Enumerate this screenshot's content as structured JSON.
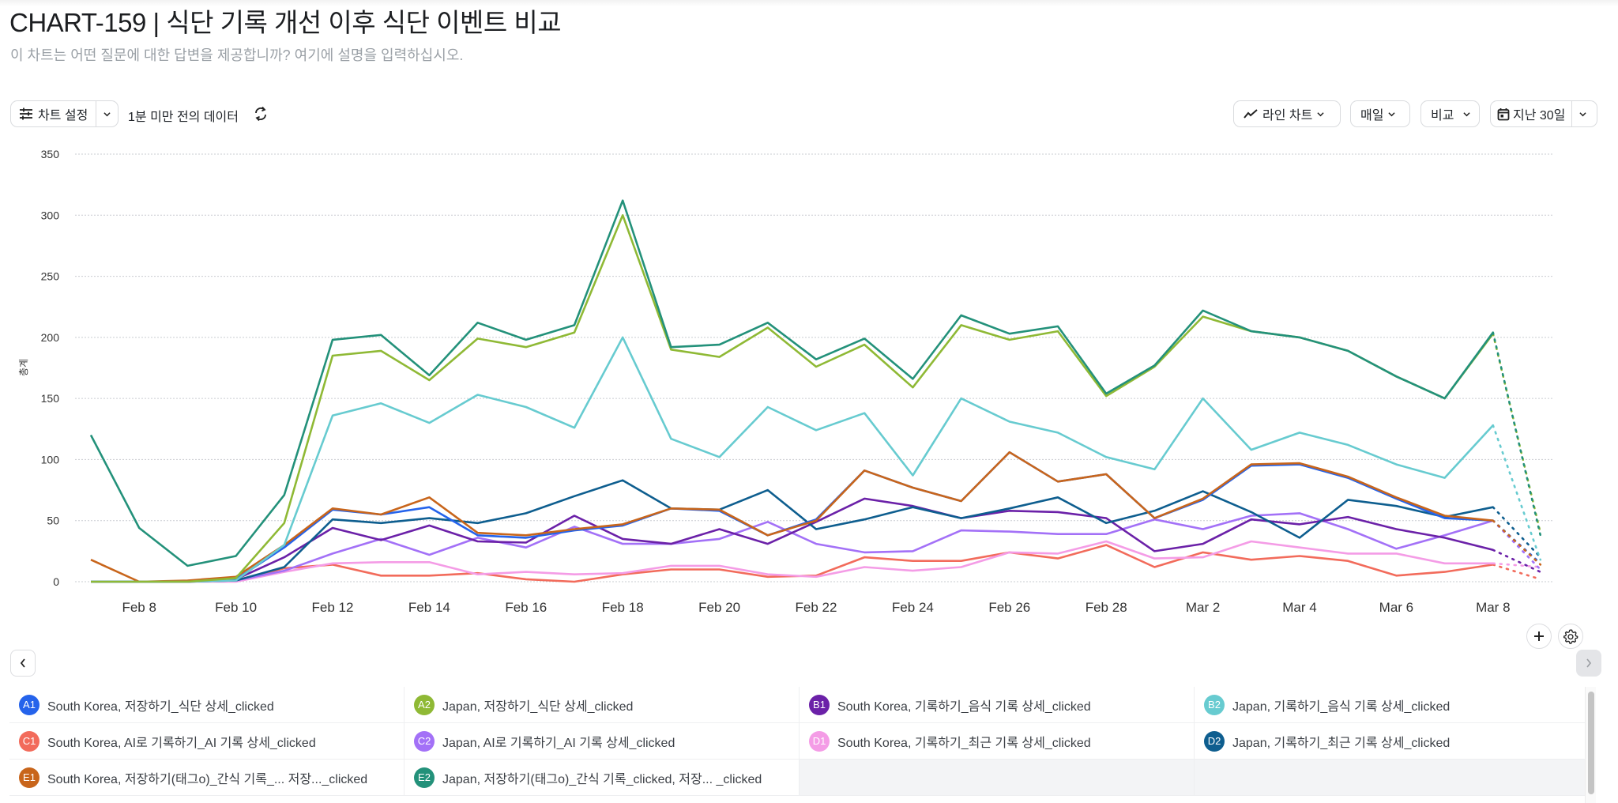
{
  "header": {
    "title": "CHART-159 | 식단 기록 개선 이후 식단 이벤트 비교",
    "description_placeholder": "이 차트는 어떤 질문에 대한 답변을 제공합니까? 여기에 설명을 입력하십시오."
  },
  "toolbar": {
    "chart_settings_label": "차트 설정",
    "data_freshness": "1분 미만 전의 데이터",
    "chart_type_label": "라인 차트",
    "interval_label": "매일",
    "compare_label": "비교",
    "date_range_label": "지난 30일"
  },
  "icons": {
    "settings": "sliders-icon",
    "refresh": "refresh-icon",
    "line_chart": "line-chart-icon",
    "calendar": "calendar-icon",
    "add": "plus-icon",
    "gear": "gear-icon",
    "prev": "chevron-left-icon",
    "next": "chevron-right-icon"
  },
  "chart_data": {
    "type": "line",
    "title": "CHART-159 | 식단 기록 개선 이후 식단 이벤트 비교",
    "xlabel": "",
    "ylabel": "총계",
    "ylim": [
      0,
      350
    ],
    "yticks": [
      0,
      50,
      100,
      150,
      200,
      250,
      300,
      350
    ],
    "grid": true,
    "legend_position": "bottom",
    "x": [
      "Feb 7",
      "Feb 8",
      "Feb 9",
      "Feb 10",
      "Feb 11",
      "Feb 12",
      "Feb 13",
      "Feb 14",
      "Feb 15",
      "Feb 16",
      "Feb 17",
      "Feb 18",
      "Feb 19",
      "Feb 20",
      "Feb 21",
      "Feb 22",
      "Feb 23",
      "Feb 24",
      "Feb 25",
      "Feb 26",
      "Feb 27",
      "Feb 28",
      "Mar 1",
      "Mar 2",
      "Mar 3",
      "Mar 4",
      "Mar 5",
      "Mar 6",
      "Mar 7",
      "Mar 8"
    ],
    "xtick_labels": [
      "Feb 8",
      "Feb 10",
      "Feb 12",
      "Feb 14",
      "Feb 16",
      "Feb 18",
      "Feb 20",
      "Feb 22",
      "Feb 24",
      "Feb 26",
      "Feb 28",
      "Mar 2",
      "Mar 4",
      "Mar 6",
      "Mar 8"
    ],
    "projection_label": "Mar 9 (incomplete, dotted)",
    "series": [
      {
        "id": "A1",
        "name": "South Korea, 저장하기_식단 상세_clicked",
        "color": "#2563eb",
        "values": [
          0,
          0,
          0,
          2,
          28,
          59,
          55,
          61,
          38,
          36,
          42,
          46,
          60,
          58,
          38,
          51,
          91,
          77,
          66,
          106,
          82,
          88,
          52,
          67,
          95,
          96,
          85,
          68,
          52,
          50
        ],
        "projection": 15
      },
      {
        "id": "A2",
        "name": "Japan, 저장하기_식단 상세_clicked",
        "color": "#8fb935",
        "values": [
          0,
          0,
          0,
          3,
          48,
          185,
          189,
          165,
          199,
          192,
          204,
          300,
          190,
          184,
          208,
          176,
          194,
          159,
          210,
          198,
          205,
          152,
          176,
          217,
          205,
          200,
          189,
          168,
          150,
          203
        ],
        "projection": 40
      },
      {
        "id": "B1",
        "name": "South Korea, 기록하기_음식 기록 상세_clicked",
        "color": "#6b21a8",
        "values": [
          0,
          0,
          0,
          2,
          20,
          44,
          34,
          46,
          33,
          32,
          54,
          35,
          31,
          43,
          31,
          49,
          68,
          62,
          52,
          58,
          57,
          52,
          25,
          31,
          51,
          47,
          53,
          43,
          36,
          26
        ],
        "projection": 8
      },
      {
        "id": "B2",
        "name": "Japan, 기록하기_음식 기록 상세_clicked",
        "color": "#67cbd0",
        "values": [
          0,
          0,
          0,
          1,
          30,
          136,
          146,
          130,
          153,
          143,
          126,
          200,
          117,
          102,
          143,
          124,
          138,
          87,
          150,
          131,
          122,
          102,
          92,
          150,
          108,
          122,
          112,
          96,
          85,
          128
        ],
        "projection": 18
      },
      {
        "id": "C1",
        "name": "South Korea, AI로 기록하기_AI 기록 상세_clicked",
        "color": "#f26b5b",
        "values": [
          0,
          0,
          0,
          1,
          11,
          14,
          5,
          5,
          7,
          2,
          0,
          6,
          10,
          10,
          4,
          5,
          20,
          17,
          17,
          24,
          19,
          30,
          12,
          24,
          18,
          21,
          17,
          5,
          8,
          14
        ],
        "projection": 2
      },
      {
        "id": "C2",
        "name": "Japan, AI로 기록하기_AI 기록 상세_clicked",
        "color": "#a371f7",
        "values": [
          0,
          0,
          0,
          1,
          9,
          23,
          35,
          22,
          36,
          28,
          45,
          31,
          31,
          35,
          49,
          31,
          24,
          25,
          42,
          41,
          39,
          39,
          51,
          43,
          54,
          56,
          43,
          27,
          38,
          50
        ],
        "projection": 10
      },
      {
        "id": "D1",
        "name": "South Korea, 기록하기_최근 기록 상세_clicked",
        "color": "#f49ce6",
        "values": [
          0,
          0,
          0,
          0,
          8,
          15,
          16,
          16,
          6,
          8,
          6,
          7,
          13,
          13,
          6,
          4,
          12,
          9,
          12,
          24,
          23,
          33,
          19,
          20,
          33,
          28,
          23,
          23,
          15,
          15
        ],
        "projection": 12
      },
      {
        "id": "D2",
        "name": "Japan, 기록하기_최근 기록 상세_clicked",
        "color": "#0e5e8f",
        "values": [
          0,
          0,
          0,
          1,
          12,
          51,
          48,
          52,
          48,
          56,
          70,
          83,
          60,
          59,
          75,
          43,
          51,
          61,
          52,
          60,
          69,
          48,
          58,
          74,
          57,
          36,
          67,
          62,
          53,
          61
        ],
        "projection": 20
      },
      {
        "id": "E1",
        "name": "South Korea, 저장하기(태그o)_간식 기록_... 저장..._clicked",
        "color": "#c8651b",
        "values": [
          18,
          0,
          1,
          4,
          30,
          60,
          55,
          69,
          40,
          38,
          43,
          47,
          60,
          59,
          38,
          50,
          91,
          77,
          66,
          106,
          82,
          88,
          52,
          68,
          96,
          97,
          86,
          69,
          54,
          50
        ],
        "projection": 14
      },
      {
        "id": "E2",
        "name": "Japan, 저장하기(태그o)_간식 기록_clicked, 저장... _clicked",
        "color": "#23917a",
        "values": [
          120,
          44,
          13,
          21,
          71,
          198,
          202,
          169,
          212,
          198,
          210,
          312,
          192,
          194,
          212,
          182,
          199,
          166,
          218,
          203,
          209,
          154,
          177,
          222,
          205,
          200,
          189,
          168,
          150,
          204
        ],
        "projection": 38
      }
    ]
  },
  "legend": {
    "rows": [
      [
        {
          "badge": "A1",
          "label": "South Korea, 저장하기_식단 상세_clicked",
          "color": "#2563eb"
        },
        {
          "badge": "A2",
          "label": "Japan, 저장하기_식단 상세_clicked",
          "color": "#8fb935"
        },
        {
          "badge": "B1",
          "label": "South Korea, 기록하기_음식 기록 상세_clicked",
          "color": "#6b21a8"
        },
        {
          "badge": "B2",
          "label": "Japan, 기록하기_음식 기록 상세_clicked",
          "color": "#67cbd0"
        }
      ],
      [
        {
          "badge": "C1",
          "label": "South Korea, AI로 기록하기_AI 기록 상세_clicked",
          "color": "#f26b5b"
        },
        {
          "badge": "C2",
          "label": "Japan, AI로 기록하기_AI 기록 상세_clicked",
          "color": "#a371f7"
        },
        {
          "badge": "D1",
          "label": "South Korea, 기록하기_최근 기록 상세_clicked",
          "color": "#f49ce6"
        },
        {
          "badge": "D2",
          "label": "Japan, 기록하기_최근 기록 상세_clicked",
          "color": "#0e5e8f"
        }
      ],
      [
        {
          "badge": "E1",
          "label": "South Korea, 저장하기(태그o)_간식 기록_... 저장..._clicked",
          "color": "#c8651b"
        },
        {
          "badge": "E2",
          "label": "Japan, 저장하기(태그o)_간식 기록_clicked, 저장... _clicked",
          "color": "#23917a"
        }
      ]
    ]
  }
}
